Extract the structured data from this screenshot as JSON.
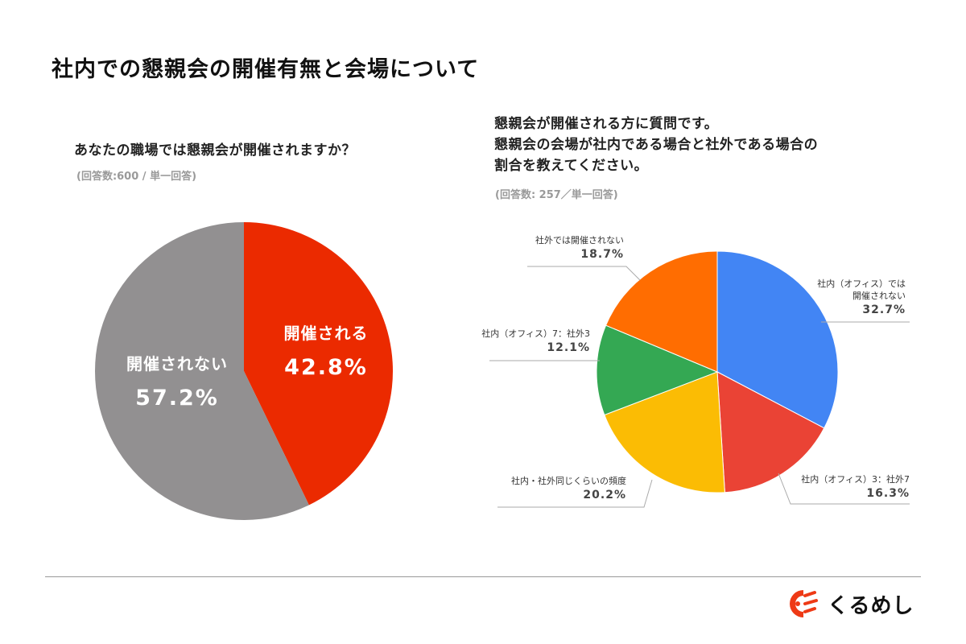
{
  "page": {
    "title": "社内での懇親会の開催有無と会場について"
  },
  "left_panel": {
    "question": "あなたの職場では懇親会が開催されますか？",
    "note": "(回答数:600 / 単一回答)"
  },
  "right_panel": {
    "question_lines": [
      "懇親会が開催される方に質問です。",
      "懇親会の会場が社内である場合と社外である場合の",
      "割合を教えてください。"
    ],
    "note": "(回答数: 257／単一回答)"
  },
  "brand": {
    "logo_icon": "kurumeshi-logo-icon",
    "name": "くるめし",
    "color": "#EE3A16"
  },
  "chart_data": [
    {
      "type": "pie",
      "title": "あなたの職場では懇親会が開催されますか？",
      "n": 600,
      "categories": [
        "開催される",
        "開催されない"
      ],
      "values": [
        42.8,
        57.2
      ],
      "labels": [
        "42.8%",
        "57.2%"
      ],
      "colors": [
        "#EB2A00",
        "#929091"
      ],
      "start_angle": "top, clockwise",
      "label_position": "inside"
    },
    {
      "type": "pie",
      "title": "懇親会の会場が社内である場合と社外である場合の割合",
      "n": 257,
      "categories": [
        "社内（オフィス）では開催されない",
        "社内（オフィス）3：社外7",
        "社内・社外同じくらいの頻度",
        "社内（オフィス）7：社外3",
        "社外では開催されない"
      ],
      "label_lines": [
        [
          "社内（オフィス）では",
          "開催されない"
        ],
        [
          "社内（オフィス）3：社外7"
        ],
        [
          "社内・社外同じくらいの頻度"
        ],
        [
          "社内（オフィス）7：社外3"
        ],
        [
          "社外では開催されない"
        ]
      ],
      "values": [
        32.7,
        16.3,
        20.2,
        12.1,
        18.7
      ],
      "labels": [
        "32.7%",
        "16.3%",
        "20.2%",
        "12.1%",
        "18.7%"
      ],
      "colors": [
        "#4285F4",
        "#EA4335",
        "#FBBC04",
        "#34A853",
        "#FF6D01"
      ],
      "start_angle": "top, clockwise",
      "label_position": "outside with leader lines"
    }
  ]
}
